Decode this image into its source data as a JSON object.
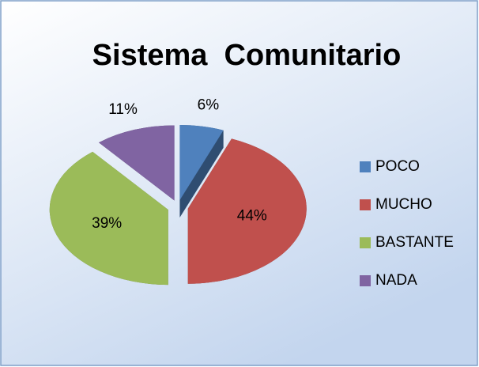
{
  "chart_data": {
    "type": "pie",
    "title": "Sistema  Comunitario",
    "categories": [
      "POCO",
      "MUCHO",
      "BASTANTE",
      "NADA"
    ],
    "values": [
      6,
      44,
      39,
      11
    ],
    "value_labels": [
      "6%",
      "44%",
      "39%",
      "11%"
    ],
    "colors": [
      "#4f81bd",
      "#c0504d",
      "#9bbb59",
      "#8064a2"
    ],
    "legend": "right"
  }
}
